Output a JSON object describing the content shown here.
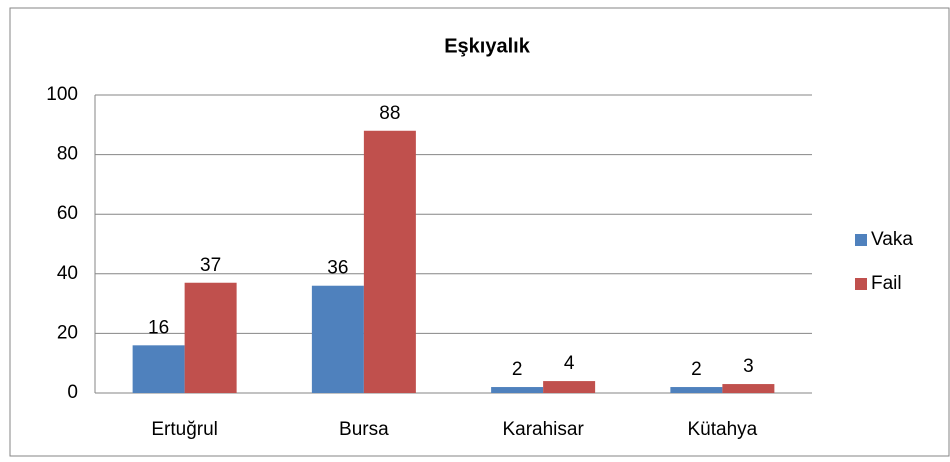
{
  "chart_data": {
    "type": "bar",
    "title": "Eşkıyalık",
    "categories": [
      "Ertuğrul",
      "Bursa",
      "Karahisar",
      "Kütahya"
    ],
    "series": [
      {
        "name": "Vaka",
        "color": "#4f81bd",
        "values": [
          16,
          36,
          2,
          2
        ]
      },
      {
        "name": "Fail",
        "color": "#c0504d",
        "values": [
          37,
          88,
          4,
          3
        ]
      }
    ],
    "ylim": [
      0,
      100
    ],
    "yticks": [
      0,
      20,
      40,
      60,
      80,
      100
    ],
    "grid": true,
    "legend": "right"
  }
}
